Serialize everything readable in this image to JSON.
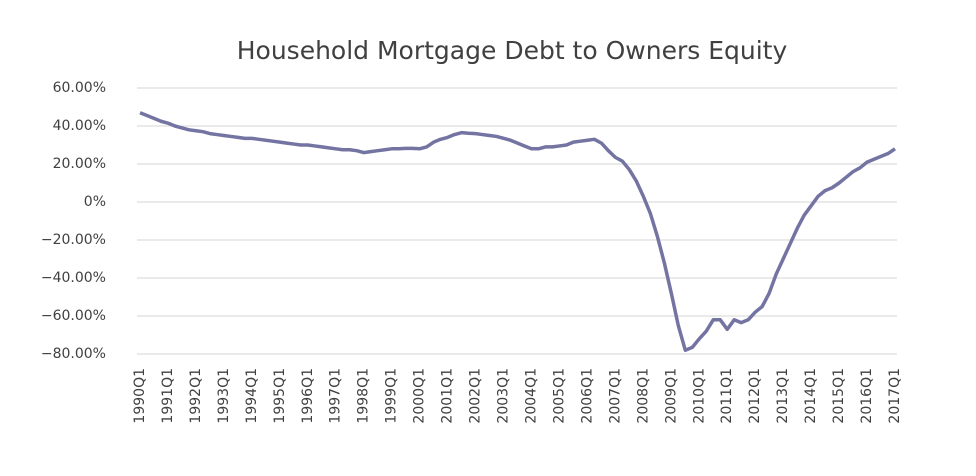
{
  "chart_data": {
    "type": "line",
    "title": "Household Mortgage Debt to Owners Equity",
    "categories": [
      "1990Q1",
      null,
      null,
      null,
      "1991Q1",
      null,
      null,
      null,
      "1992Q1",
      null,
      null,
      null,
      "1993Q1",
      null,
      null,
      null,
      "1994Q1",
      null,
      null,
      null,
      "1995Q1",
      null,
      null,
      null,
      "1996Q1",
      null,
      null,
      null,
      "1997Q1",
      null,
      null,
      null,
      "1998Q1",
      null,
      null,
      null,
      "1999Q1",
      null,
      null,
      null,
      "2000Q1",
      null,
      null,
      null,
      "2001Q1",
      null,
      null,
      null,
      "2002Q1",
      null,
      null,
      null,
      "2003Q1",
      null,
      null,
      null,
      "2004Q1",
      null,
      null,
      null,
      "2005Q1",
      null,
      null,
      null,
      "2006Q1",
      null,
      null,
      null,
      "2007Q1",
      null,
      null,
      null,
      "2008Q1",
      null,
      null,
      null,
      "2009Q1",
      null,
      null,
      null,
      "2010Q1",
      null,
      null,
      null,
      "2011Q1",
      null,
      null,
      null,
      "2012Q1",
      null,
      null,
      null,
      "2013Q1",
      null,
      null,
      null,
      "2014Q1",
      null,
      null,
      null,
      "2015Q1",
      null,
      null,
      null,
      "2016Q1",
      null,
      null,
      null,
      "2017Q1"
    ],
    "series": [
      {
        "color": "#7474a2",
        "values": [
          47,
          45.5,
          44,
          42.5,
          41.5,
          40,
          39,
          38,
          37.5,
          37,
          36,
          35.5,
          35,
          34.5,
          34,
          33.5,
          33.5,
          33,
          32.5,
          32,
          31.5,
          31,
          30.5,
          30,
          30,
          29.5,
          29,
          28.5,
          28,
          27.5,
          27.5,
          27,
          26,
          26.5,
          27,
          27.5,
          28,
          28,
          28.2,
          28.2,
          28,
          29,
          31.5,
          33,
          34,
          35.5,
          36.5,
          36.2,
          36,
          35.5,
          35,
          34.5,
          33.5,
          32.5,
          31,
          29.5,
          28,
          28,
          29,
          29,
          29.5,
          30,
          31.5,
          32,
          32.5,
          33,
          31,
          27,
          23.5,
          21.5,
          17,
          11,
          3,
          -6,
          -18,
          -32,
          -48,
          -65,
          -78,
          -76.5,
          -72,
          -68,
          -62,
          -62,
          -67,
          -62,
          -63.5,
          -62,
          -58,
          -55,
          -48,
          -38,
          -30,
          -22,
          -14,
          -7,
          -2,
          3,
          6,
          7.5,
          10,
          13,
          16,
          18,
          21,
          22.5,
          24,
          25.5,
          28
        ]
      }
    ],
    "ylim": [
      -80,
      60
    ],
    "yticks": [
      {
        "value": -80,
        "label": "−80.00%"
      },
      {
        "value": -60,
        "label": "−60.00%"
      },
      {
        "value": -40,
        "label": "−40.00%"
      },
      {
        "value": -20,
        "label": "−20.00%"
      },
      {
        "value": 0,
        "label": "0%"
      },
      {
        "value": 20,
        "label": "20.00%"
      },
      {
        "value": 40,
        "label": "40.00%"
      },
      {
        "value": 60,
        "label": "60.00%"
      }
    ],
    "grid": true
  }
}
